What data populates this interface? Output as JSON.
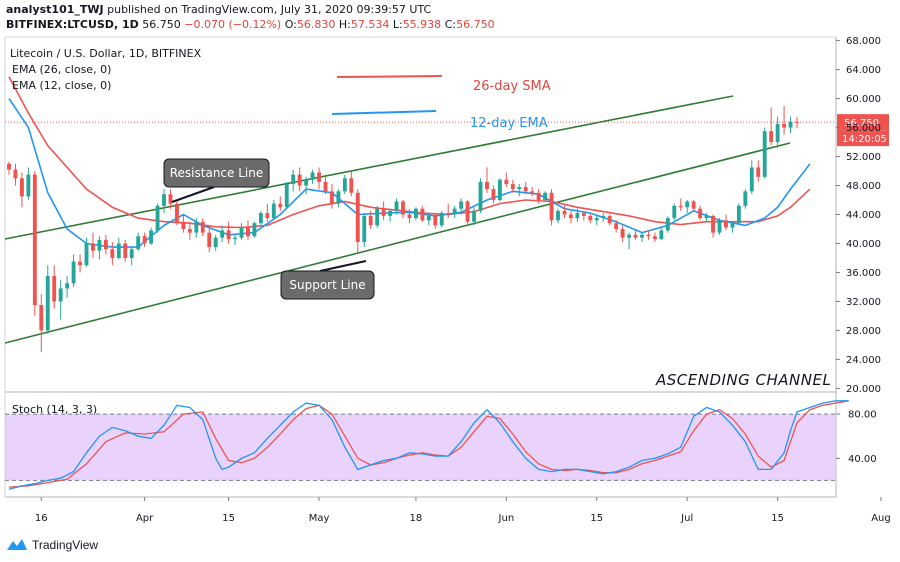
{
  "header": {
    "line1_user": "analyst101_TWJ",
    "line1_rest": " published on TradingView.com, July 31, 2020 09:39:57 UTC",
    "symbol": "BITFINEX:LTCUSD, 1D",
    "last": "56.750",
    "change": "−0.070 (−0.12%)",
    "o": "56.830",
    "h": "57.534",
    "l": "55.938",
    "c": "56.750",
    "o_label": "O:",
    "h_label": "H:",
    "l_label": "L:",
    "c_label": "C:"
  },
  "legend": {
    "title": "Litecoin / U.S. Dollar, 1D, BITFINEX",
    "ema26": "EMA (26, close, 0)",
    "ema12": "EMA (12, close, 0)",
    "stoch": "Stoch (14, 3, 3)"
  },
  "annotations": {
    "sma26": "26-day SMA",
    "ema12": "12-day EMA",
    "resistance": "Resistance Line",
    "support": "Support Line",
    "pattern": "ASCENDING CHANNEL"
  },
  "price_tags": {
    "last": "56.750",
    "countdown": "14:20:05"
  },
  "footer": {
    "brand": "TradingView"
  },
  "colors": {
    "up": "#26a69a",
    "down": "#ef5350",
    "ema26": "#ef5350",
    "ema12": "#2196f3",
    "channel": "#2e7d32",
    "stoch_k": "#2196f3",
    "stoch_d": "#ef5350",
    "stoch_band": "#e1c4fb",
    "price_tag": "#ef5350",
    "text_red": "#e0453f",
    "text_blue": "#2196f3"
  },
  "chart_data": {
    "type": "candlestick",
    "price_axis": {
      "ticks": [
        20,
        24,
        28,
        32,
        36,
        40,
        44,
        48,
        52,
        56,
        60,
        64,
        68
      ],
      "labels": [
        "20.000",
        "24.000",
        "28.000",
        "32.000",
        "36.000",
        "40.000",
        "44.000",
        "48.000",
        "52.000",
        "56.000",
        "60.000",
        "64.000",
        "68.000"
      ],
      "range": [
        19.5,
        68.5
      ]
    },
    "stoch_axis": {
      "ticks": [
        40,
        80
      ],
      "labels": [
        "40.00",
        "80.00"
      ],
      "range": [
        5,
        100
      ],
      "bands": [
        20,
        80
      ]
    },
    "x_axis": {
      "labels": [
        "16",
        "Apr",
        "15",
        "May",
        "18",
        "Jun",
        "15",
        "Jul",
        "15",
        "Aug"
      ],
      "label_index": [
        5,
        21,
        34,
        48,
        63,
        77,
        91,
        105,
        119,
        135
      ]
    },
    "candles": [
      [
        51.0,
        51.3,
        49.5,
        50.2
      ],
      [
        50.2,
        51.0,
        48.0,
        49.0
      ],
      [
        49.0,
        49.8,
        45.0,
        46.5
      ],
      [
        46.5,
        50.5,
        46.0,
        49.5
      ],
      [
        49.5,
        50.0,
        30.0,
        31.5
      ],
      [
        31.5,
        33.0,
        25.0,
        28.0
      ],
      [
        28.0,
        37.0,
        27.5,
        35.5
      ],
      [
        35.5,
        37.0,
        31.0,
        32.0
      ],
      [
        32.0,
        35.0,
        29.5,
        33.8
      ],
      [
        33.8,
        35.5,
        32.5,
        34.5
      ],
      [
        34.5,
        38.5,
        34.0,
        37.5
      ],
      [
        37.5,
        38.5,
        36.0,
        37.0
      ],
      [
        37.0,
        40.8,
        36.8,
        40.0
      ],
      [
        40.0,
        41.5,
        38.0,
        39.0
      ],
      [
        39.0,
        41.0,
        37.8,
        40.5
      ],
      [
        40.5,
        41.2,
        38.5,
        39.2
      ],
      [
        39.2,
        40.2,
        37.0,
        38.0
      ],
      [
        38.0,
        40.8,
        37.8,
        40.0
      ],
      [
        40.0,
        40.5,
        37.5,
        38.0
      ],
      [
        38.0,
        39.5,
        37.0,
        39.2
      ],
      [
        39.2,
        41.5,
        39.0,
        41.0
      ],
      [
        41.0,
        41.5,
        39.5,
        40.0
      ],
      [
        40.0,
        42.2,
        39.8,
        41.8
      ],
      [
        41.8,
        45.5,
        41.5,
        45.2
      ],
      [
        45.2,
        47.5,
        44.2,
        46.8
      ],
      [
        46.8,
        47.5,
        44.8,
        45.5
      ],
      [
        45.5,
        46.0,
        42.5,
        43.0
      ],
      [
        43.0,
        44.0,
        41.5,
        42.0
      ],
      [
        42.0,
        43.0,
        40.5,
        41.5
      ],
      [
        41.5,
        43.5,
        40.8,
        43.0
      ],
      [
        43.0,
        43.5,
        41.0,
        41.5
      ],
      [
        41.5,
        42.5,
        38.8,
        39.5
      ],
      [
        39.5,
        41.2,
        39.0,
        40.8
      ],
      [
        40.8,
        42.5,
        40.2,
        41.8
      ],
      [
        41.8,
        43.0,
        40.0,
        40.6
      ],
      [
        40.6,
        41.2,
        39.8,
        40.8
      ],
      [
        40.8,
        42.8,
        40.5,
        42.2
      ],
      [
        42.2,
        43.2,
        40.5,
        41.0
      ],
      [
        41.0,
        43.0,
        40.8,
        42.8
      ],
      [
        42.8,
        44.5,
        42.5,
        44.2
      ],
      [
        44.2,
        45.5,
        43.0,
        43.5
      ],
      [
        43.5,
        46.0,
        43.2,
        45.5
      ],
      [
        45.5,
        46.5,
        44.5,
        45.0
      ],
      [
        45.0,
        48.5,
        44.8,
        48.2
      ],
      [
        48.2,
        50.2,
        47.2,
        49.5
      ],
      [
        49.5,
        50.5,
        47.2,
        48.0
      ],
      [
        48.0,
        49.2,
        46.8,
        48.8
      ],
      [
        48.8,
        50.2,
        48.2,
        49.8
      ],
      [
        49.8,
        50.5,
        47.5,
        48.5
      ],
      [
        48.5,
        49.5,
        46.8,
        47.2
      ],
      [
        47.2,
        48.2,
        44.8,
        45.5
      ],
      [
        45.5,
        47.5,
        45.0,
        47.2
      ],
      [
        47.2,
        49.5,
        46.8,
        49.0
      ],
      [
        49.0,
        50.0,
        46.5,
        47.0
      ],
      [
        47.0,
        47.5,
        38.8,
        40.2
      ],
      [
        40.2,
        44.2,
        39.5,
        43.8
      ],
      [
        43.8,
        44.5,
        42.0,
        42.5
      ],
      [
        42.5,
        45.2,
        42.2,
        44.8
      ],
      [
        44.8,
        45.8,
        43.2,
        43.8
      ],
      [
        43.8,
        44.8,
        43.0,
        44.5
      ],
      [
        44.5,
        46.2,
        44.0,
        45.8
      ],
      [
        45.8,
        46.0,
        43.5,
        44.0
      ],
      [
        44.0,
        44.8,
        42.8,
        43.5
      ],
      [
        43.5,
        45.0,
        43.2,
        44.8
      ],
      [
        44.8,
        45.2,
        43.0,
        43.2
      ],
      [
        43.2,
        44.0,
        42.5,
        43.8
      ],
      [
        43.8,
        44.2,
        42.0,
        42.5
      ],
      [
        42.5,
        44.5,
        42.2,
        44.2
      ],
      [
        44.2,
        45.5,
        43.5,
        44.0
      ],
      [
        44.0,
        45.2,
        43.5,
        44.8
      ],
      [
        44.8,
        46.2,
        44.0,
        45.8
      ],
      [
        45.8,
        46.0,
        42.5,
        43.0
      ],
      [
        43.0,
        45.0,
        42.5,
        44.5
      ],
      [
        44.5,
        49.0,
        44.2,
        48.5
      ],
      [
        48.5,
        50.5,
        47.0,
        47.5
      ],
      [
        47.5,
        48.0,
        45.5,
        46.0
      ],
      [
        46.0,
        49.0,
        45.8,
        48.8
      ],
      [
        48.8,
        49.8,
        47.8,
        48.2
      ],
      [
        48.2,
        48.8,
        47.0,
        47.5
      ],
      [
        47.5,
        48.2,
        46.5,
        47.8
      ],
      [
        47.8,
        48.5,
        46.8,
        47.2
      ],
      [
        47.2,
        47.8,
        46.5,
        47.0
      ],
      [
        47.0,
        47.5,
        45.5,
        46.0
      ],
      [
        46.0,
        47.2,
        45.8,
        47.0
      ],
      [
        47.0,
        47.5,
        42.5,
        43.2
      ],
      [
        43.2,
        44.8,
        42.8,
        44.5
      ],
      [
        44.5,
        45.2,
        43.5,
        44.0
      ],
      [
        44.0,
        44.5,
        42.8,
        43.5
      ],
      [
        43.5,
        44.8,
        43.0,
        44.2
      ],
      [
        44.2,
        44.5,
        43.2,
        43.8
      ],
      [
        43.8,
        44.2,
        42.8,
        43.2
      ],
      [
        43.2,
        43.8,
        42.5,
        43.5
      ],
      [
        43.5,
        44.2,
        43.0,
        43.8
      ],
      [
        43.8,
        44.0,
        42.5,
        42.8
      ],
      [
        42.8,
        43.2,
        41.5,
        42.0
      ],
      [
        42.0,
        42.5,
        40.2,
        40.8
      ],
      [
        40.8,
        41.5,
        39.2,
        41.2
      ],
      [
        41.2,
        41.8,
        40.5,
        40.8
      ],
      [
        40.8,
        41.5,
        40.2,
        41.2
      ],
      [
        41.2,
        41.8,
        40.5,
        41.0
      ],
      [
        41.0,
        41.5,
        40.2,
        40.6
      ],
      [
        40.6,
        42.2,
        40.5,
        41.8
      ],
      [
        41.8,
        43.8,
        41.5,
        43.5
      ],
      [
        43.5,
        45.5,
        43.2,
        45.2
      ],
      [
        45.2,
        46.2,
        44.5,
        45.0
      ],
      [
        45.0,
        46.0,
        44.2,
        45.8
      ],
      [
        45.8,
        46.0,
        44.5,
        44.8
      ],
      [
        44.8,
        45.2,
        43.2,
        43.5
      ],
      [
        43.5,
        44.2,
        43.0,
        43.8
      ],
      [
        43.8,
        44.0,
        40.8,
        41.5
      ],
      [
        41.5,
        43.5,
        41.2,
        43.2
      ],
      [
        43.2,
        44.0,
        41.8,
        42.2
      ],
      [
        42.2,
        43.0,
        41.5,
        42.8
      ],
      [
        42.8,
        45.5,
        42.5,
        45.2
      ],
      [
        45.2,
        47.5,
        44.8,
        47.2
      ],
      [
        47.2,
        51.5,
        46.8,
        50.5
      ],
      [
        50.5,
        51.5,
        48.5,
        49.2
      ],
      [
        49.2,
        56.0,
        49.0,
        55.5
      ],
      [
        55.5,
        58.8,
        53.5,
        54.0
      ],
      [
        54.0,
        57.5,
        53.2,
        56.5
      ],
      [
        56.5,
        59.0,
        55.0,
        56.0
      ],
      [
        56.0,
        57.5,
        55.2,
        56.8
      ],
      [
        56.8,
        57.5,
        55.9,
        56.75
      ]
    ],
    "ema26": [
      [
        0,
        63.0
      ],
      [
        3,
        58.0
      ],
      [
        6,
        53.5
      ],
      [
        9,
        50.5
      ],
      [
        12,
        47.5
      ],
      [
        16,
        45.0
      ],
      [
        20,
        43.5
      ],
      [
        24,
        43.0
      ],
      [
        28,
        42.8
      ],
      [
        32,
        42.3
      ],
      [
        36,
        42.2
      ],
      [
        40,
        42.5
      ],
      [
        44,
        44.0
      ],
      [
        48,
        45.2
      ],
      [
        52,
        45.8
      ],
      [
        56,
        45.0
      ],
      [
        60,
        44.6
      ],
      [
        64,
        44.2
      ],
      [
        68,
        44.0
      ],
      [
        72,
        44.4
      ],
      [
        76,
        45.5
      ],
      [
        80,
        46.0
      ],
      [
        84,
        45.8
      ],
      [
        88,
        45.0
      ],
      [
        92,
        44.4
      ],
      [
        96,
        43.8
      ],
      [
        100,
        43.0
      ],
      [
        104,
        42.6
      ],
      [
        108,
        43.0
      ],
      [
        112,
        43.0
      ],
      [
        116,
        43.0
      ],
      [
        119,
        43.8
      ],
      [
        121,
        45.0
      ],
      [
        124,
        47.5
      ]
    ],
    "ema12": [
      [
        0,
        60.0
      ],
      [
        3,
        56.0
      ],
      [
        6,
        47.0
      ],
      [
        9,
        42.0
      ],
      [
        12,
        40.0
      ],
      [
        16,
        39.5
      ],
      [
        20,
        39.5
      ],
      [
        24,
        42.5
      ],
      [
        27,
        44.0
      ],
      [
        30,
        42.5
      ],
      [
        34,
        41.2
      ],
      [
        38,
        41.5
      ],
      [
        42,
        44.0
      ],
      [
        46,
        47.5
      ],
      [
        50,
        47.0
      ],
      [
        54,
        44.0
      ],
      [
        58,
        44.2
      ],
      [
        62,
        44.3
      ],
      [
        66,
        43.8
      ],
      [
        70,
        44.3
      ],
      [
        74,
        46.0
      ],
      [
        78,
        47.2
      ],
      [
        82,
        46.8
      ],
      [
        86,
        44.8
      ],
      [
        90,
        44.2
      ],
      [
        94,
        43.0
      ],
      [
        98,
        41.5
      ],
      [
        102,
        42.5
      ],
      [
        106,
        44.5
      ],
      [
        110,
        43.2
      ],
      [
        114,
        42.5
      ],
      [
        117,
        43.5
      ],
      [
        119,
        45.0
      ],
      [
        121,
        47.5
      ],
      [
        124,
        51.0
      ]
    ],
    "stoch_k": [
      [
        0,
        12
      ],
      [
        2,
        15
      ],
      [
        4,
        17
      ],
      [
        6,
        20
      ],
      [
        8,
        22
      ],
      [
        10,
        28
      ],
      [
        12,
        45
      ],
      [
        14,
        60
      ],
      [
        16,
        68
      ],
      [
        18,
        65
      ],
      [
        20,
        60
      ],
      [
        22,
        58
      ],
      [
        24,
        70
      ],
      [
        26,
        88
      ],
      [
        28,
        86
      ],
      [
        30,
        75
      ],
      [
        32,
        40
      ],
      [
        33,
        30
      ],
      [
        34,
        32
      ],
      [
        36,
        40
      ],
      [
        38,
        45
      ],
      [
        40,
        58
      ],
      [
        42,
        70
      ],
      [
        44,
        82
      ],
      [
        46,
        90
      ],
      [
        48,
        88
      ],
      [
        50,
        75
      ],
      [
        52,
        50
      ],
      [
        54,
        30
      ],
      [
        56,
        34
      ],
      [
        58,
        38
      ],
      [
        60,
        40
      ],
      [
        62,
        45
      ],
      [
        64,
        44
      ],
      [
        66,
        42
      ],
      [
        68,
        42
      ],
      [
        70,
        55
      ],
      [
        72,
        72
      ],
      [
        74,
        84
      ],
      [
        76,
        72
      ],
      [
        78,
        55
      ],
      [
        80,
        40
      ],
      [
        82,
        30
      ],
      [
        84,
        28
      ],
      [
        86,
        30
      ],
      [
        88,
        30
      ],
      [
        90,
        28
      ],
      [
        92,
        26
      ],
      [
        94,
        28
      ],
      [
        96,
        32
      ],
      [
        98,
        38
      ],
      [
        100,
        40
      ],
      [
        102,
        44
      ],
      [
        104,
        50
      ],
      [
        106,
        78
      ],
      [
        108,
        86
      ],
      [
        110,
        82
      ],
      [
        112,
        70
      ],
      [
        114,
        55
      ],
      [
        116,
        30
      ],
      [
        118,
        30
      ],
      [
        120,
        45
      ],
      [
        121,
        65
      ],
      [
        122,
        82
      ],
      [
        124,
        86
      ],
      [
        126,
        90
      ],
      [
        128,
        92
      ],
      [
        130,
        92
      ]
    ],
    "stoch_d": [
      [
        0,
        14
      ],
      [
        3,
        15
      ],
      [
        6,
        18
      ],
      [
        9,
        21
      ],
      [
        12,
        35
      ],
      [
        15,
        55
      ],
      [
        18,
        63
      ],
      [
        21,
        62
      ],
      [
        24,
        64
      ],
      [
        27,
        80
      ],
      [
        30,
        82
      ],
      [
        32,
        58
      ],
      [
        34,
        38
      ],
      [
        36,
        36
      ],
      [
        38,
        40
      ],
      [
        40,
        50
      ],
      [
        42,
        62
      ],
      [
        44,
        75
      ],
      [
        46,
        85
      ],
      [
        48,
        88
      ],
      [
        50,
        80
      ],
      [
        52,
        60
      ],
      [
        54,
        40
      ],
      [
        56,
        34
      ],
      [
        58,
        36
      ],
      [
        60,
        40
      ],
      [
        62,
        43
      ],
      [
        64,
        45
      ],
      [
        66,
        43
      ],
      [
        68,
        42
      ],
      [
        70,
        50
      ],
      [
        72,
        64
      ],
      [
        74,
        78
      ],
      [
        76,
        76
      ],
      [
        78,
        62
      ],
      [
        80,
        46
      ],
      [
        82,
        35
      ],
      [
        84,
        30
      ],
      [
        86,
        29
      ],
      [
        88,
        30
      ],
      [
        90,
        29
      ],
      [
        92,
        27
      ],
      [
        94,
        27
      ],
      [
        96,
        30
      ],
      [
        98,
        35
      ],
      [
        100,
        38
      ],
      [
        102,
        42
      ],
      [
        104,
        46
      ],
      [
        106,
        65
      ],
      [
        108,
        80
      ],
      [
        110,
        84
      ],
      [
        112,
        76
      ],
      [
        114,
        62
      ],
      [
        116,
        42
      ],
      [
        118,
        32
      ],
      [
        120,
        38
      ],
      [
        121,
        55
      ],
      [
        122,
        72
      ],
      [
        124,
        84
      ],
      [
        126,
        88
      ],
      [
        128,
        90
      ],
      [
        130,
        92
      ]
    ]
  }
}
